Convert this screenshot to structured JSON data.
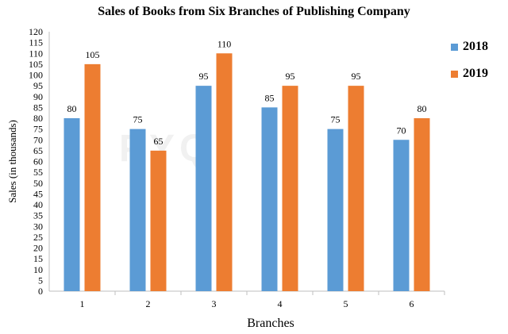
{
  "chart_data": {
    "type": "bar",
    "title": "Sales of Books from Six Branches of Publishing Company",
    "xlabel": "Branches",
    "ylabel": "Sales (in thousands)",
    "categories": [
      "1",
      "2",
      "3",
      "4",
      "5",
      "6"
    ],
    "series": [
      {
        "name": "2018",
        "color": "#5B9BD5",
        "values": [
          80,
          75,
          95,
          85,
          75,
          70
        ]
      },
      {
        "name": "2019",
        "color": "#ED7D31",
        "values": [
          105,
          65,
          110,
          95,
          95,
          80
        ]
      }
    ],
    "ylim": [
      0,
      120
    ],
    "yticks": [
      "0",
      "5",
      "10",
      "15",
      "20",
      "25",
      "30",
      "35",
      "40",
      "45",
      "50",
      "55",
      "60",
      "65",
      "70",
      "75",
      "80",
      "85",
      "90",
      "95",
      "100",
      "105",
      "110",
      "115",
      "120"
    ],
    "grid": false,
    "legend_position": "top-right",
    "data_labels": true
  },
  "watermark_text": "PYQ OCEAN"
}
